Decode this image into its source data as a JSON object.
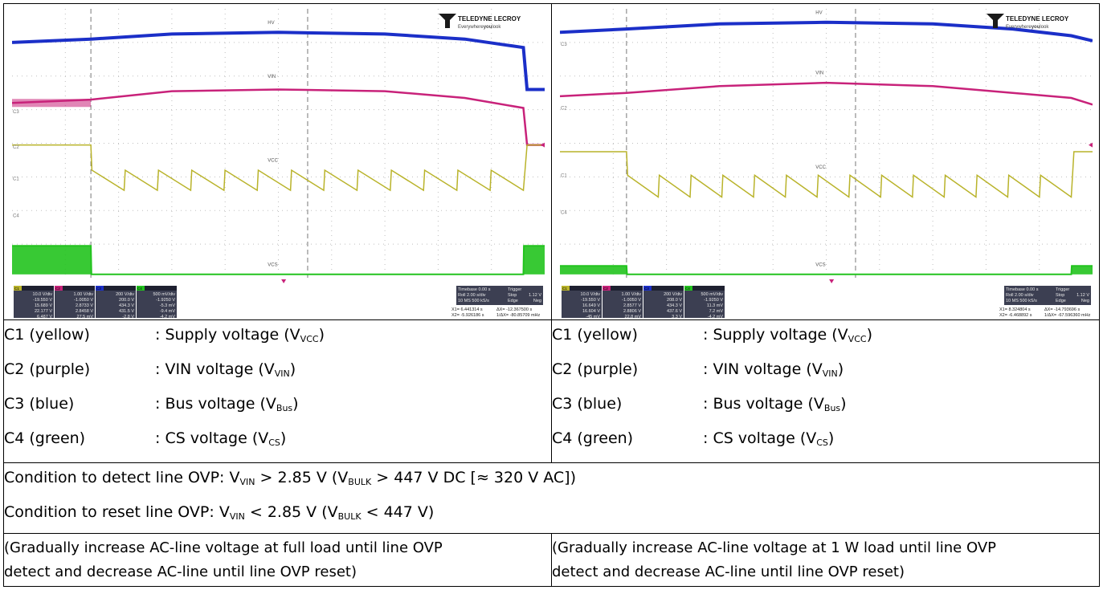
{
  "scopes": [
    {
      "brand": "TELEDYNE LECROY",
      "tagline_pre": "Everywhere",
      "tagline_bold": "you",
      "tagline_post": "look",
      "trace_labels": {
        "hv": "HV",
        "vin": "VIN",
        "vcc": "VCC",
        "vcs": "VCS"
      },
      "channel_tags": {
        "c1": "C1",
        "c2": "C2",
        "c3": "C3",
        "c4": "C4"
      },
      "panels": [
        {
          "ch": "C1",
          "rows": [
            "10.0 V/div",
            "-19.550 V",
            "15.689 V",
            "22.177 V",
            "6.487 V"
          ]
        },
        {
          "ch": "C2",
          "rows": [
            "1.00 V/div",
            "-1.0050 V",
            "2.8733 V",
            "2.8458 V",
            "27.5 mV"
          ]
        },
        {
          "ch": "C3",
          "rows": [
            "200 V/div",
            "200.0 V",
            "434.3 V",
            "431.5 V",
            "-2.8 V"
          ]
        },
        {
          "ch": "C4",
          "rows": [
            "500 mV/div",
            "-1.9250 V",
            "-5.3 mV",
            "-9.4 mV",
            "-4.2 mV"
          ]
        }
      ],
      "timebase": {
        "timebase": "Timebase   0.00 s",
        "trigger": "Trigger",
        "roll": "Roll     2.00 s/div",
        "stop": "Stop",
        "trig_val": "1.12 V",
        "ms": "10 MS    500 kS/s",
        "edge": "Edge",
        "neg": "Neg"
      },
      "cursors": {
        "x1": "X1=  6.441314 s",
        "dx": "ΔX=    -12.367500 s",
        "x2": "X2= -5.926186 s",
        "idx": "1/ΔX=  -80.85709 mHz"
      }
    },
    {
      "brand": "TELEDYNE LECROY",
      "tagline_pre": "Everywhere",
      "tagline_bold": "you",
      "tagline_post": "look",
      "trace_labels": {
        "hv": "HV",
        "vin": "VIN",
        "vcc": "VCC",
        "vcs": "VCS"
      },
      "channel_tags": {
        "c1": "C1",
        "c2": "C2",
        "c3": "C3",
        "c4": "C4"
      },
      "panels": [
        {
          "ch": "C1",
          "rows": [
            "10.0 V/div",
            "-19.550 V",
            "16.649 V",
            "16.604 V",
            "-45 mV"
          ]
        },
        {
          "ch": "C2",
          "rows": [
            "1.00 V/div",
            "-1.0050 V",
            "2.8577 V",
            "2.8806 V",
            "22.8 mV"
          ]
        },
        {
          "ch": "C3",
          "rows": [
            "200 V/div",
            "208.0 V",
            "434.3 V",
            "437.6 V",
            "3.3 V"
          ]
        },
        {
          "ch": "C4",
          "rows": [
            "500 mV/div",
            "-1.9250 V",
            "11.3 mV",
            "7.2 mV",
            "-4.2 mV"
          ]
        }
      ],
      "timebase": {
        "timebase": "Timebase   0.00 s",
        "trigger": "Trigger",
        "roll": "Roll     2.00 s/div",
        "stop": "Stop",
        "trig_val": "1.12 V",
        "ms": "10 MS    500 kS/s",
        "edge": "Edge",
        "neg": "Neg"
      },
      "cursors": {
        "x1": "X1=  8.324804 s",
        "dx": "ΔX=    -14.793696 s",
        "x2": "X2= -6.468892 s",
        "idx": "1/ΔX=  -67.596360 mHz"
      }
    }
  ],
  "legend_left": [
    {
      "name": "C1 (yellow)",
      "desc": ": Supply voltage (V",
      "sub": "VCC",
      "close": ")"
    },
    {
      "name": "C2 (purple)",
      "desc": ": VIN voltage (V",
      "sub": "VIN",
      "close": ")"
    },
    {
      "name": "C3 (blue)",
      "desc": ": Bus voltage (V",
      "sub": "Bus",
      "close": ")"
    },
    {
      "name": "C4 (green)",
      "desc": ": CS voltage (V",
      "sub": "CS",
      "close": ")"
    }
  ],
  "legend_right": [
    {
      "name": "C1 (yellow)",
      "desc": ": Supply voltage (V",
      "sub": "VCC",
      "close": ")"
    },
    {
      "name": "C2 (purple)",
      "desc": ": VIN voltage (V",
      "sub": "VIN",
      "close": ")"
    },
    {
      "name": "C3 (blue)",
      "desc": ": Bus voltage (V",
      "sub": "Bus",
      "close": ")"
    },
    {
      "name": "C4 (green)",
      "desc": ": CS voltage (V",
      "sub": "CS",
      "close": ")"
    }
  ],
  "conditions": {
    "detect": {
      "a": "Condition to detect line OVP: V",
      "s1": "VIN",
      "b": " > 2.85 V (V",
      "s2": "BULK",
      "c": " > 447 V DC [≈ 320 V AC])"
    },
    "reset": {
      "a": "Condition to reset line OVP: V",
      "s1": "VIN",
      "b": " < 2.85 V (V",
      "s2": "BULK",
      "c": " < 447 V)"
    }
  },
  "notes": {
    "left_line1": "(Gradually increase AC-line voltage at full load until line OVP",
    "left_line2": "detect and decrease AC-line until line OVP reset)",
    "right_line1": "(Gradually increase AC-line voltage at 1 W load until line OVP",
    "right_line2": "detect and decrease AC-line until line OVP reset)"
  },
  "colors": {
    "c1": "#b9b32a",
    "c2": "#c8227a",
    "c3": "#1b2fc8",
    "c4": "#22c31e",
    "grid": "#bfbfbf",
    "panel": "#3c3f52"
  },
  "chart_data": [
    {
      "type": "line",
      "x_unit": "div",
      "x_range": [
        0,
        10
      ],
      "cursors_x_div": [
        1.48,
        5.55
      ],
      "series": [
        {
          "name": "HV",
          "channel": "C3",
          "x": [
            0,
            1.48,
            3,
            5,
            7,
            8.5,
            9.6,
            9.67,
            10
          ],
          "y": [
            7.0,
            7.1,
            7.25,
            7.3,
            7.25,
            7.1,
            6.85,
            5.6,
            5.6
          ]
        },
        {
          "name": "VIN",
          "channel": "C2",
          "x": [
            0,
            1.48,
            3,
            5,
            7,
            8.5,
            9.6,
            9.67,
            10
          ],
          "y": [
            5.2,
            5.3,
            5.55,
            5.6,
            5.55,
            5.35,
            5.05,
            3.95,
            3.95
          ]
        },
        {
          "name": "VCC",
          "channel": "C1",
          "x": [
            0,
            1.48,
            1.8,
            9.6,
            9.67,
            10
          ],
          "y": [
            3.95,
            3.95,
            3.2,
            3.2,
            3.95,
            3.95
          ],
          "note": "sawtooth between 3.2 and 2.6 div, 13 cycles"
        },
        {
          "name": "VCS",
          "channel": "C4",
          "x": [
            0,
            1.48,
            1.49,
            9.6,
            9.61,
            10
          ],
          "y": [
            0.95,
            0.95,
            0.1,
            0.1,
            0.95,
            0.95
          ]
        }
      ]
    },
    {
      "type": "line",
      "x_unit": "div",
      "x_range": [
        0,
        10
      ],
      "cursors_x_div": [
        1.25,
        5.55
      ],
      "series": [
        {
          "name": "HV",
          "channel": "C3",
          "x": [
            0,
            1.25,
            3,
            5,
            7,
            8.5,
            9.6,
            10
          ],
          "y": [
            7.3,
            7.4,
            7.55,
            7.6,
            7.55,
            7.4,
            7.2,
            7.05
          ]
        },
        {
          "name": "VIN",
          "channel": "C2",
          "x": [
            0,
            1.25,
            3,
            5,
            7,
            8.5,
            9.6,
            10
          ],
          "y": [
            5.4,
            5.5,
            5.7,
            5.8,
            5.7,
            5.5,
            5.35,
            5.15
          ]
        },
        {
          "name": "VCC",
          "channel": "C1",
          "x": [
            0,
            1.25,
            1.45,
            9.6,
            9.65,
            10
          ],
          "y": [
            3.75,
            3.75,
            3.05,
            3.05,
            3.75,
            3.75
          ],
          "note": "sawtooth between 3.05 and 2.4 div, 14 cycles"
        },
        {
          "name": "VCS",
          "channel": "C4",
          "x": [
            0,
            1.25,
            1.26,
            9.6,
            9.61,
            10
          ],
          "y": [
            0.35,
            0.35,
            0.1,
            0.1,
            0.35,
            0.35
          ]
        }
      ]
    }
  ]
}
